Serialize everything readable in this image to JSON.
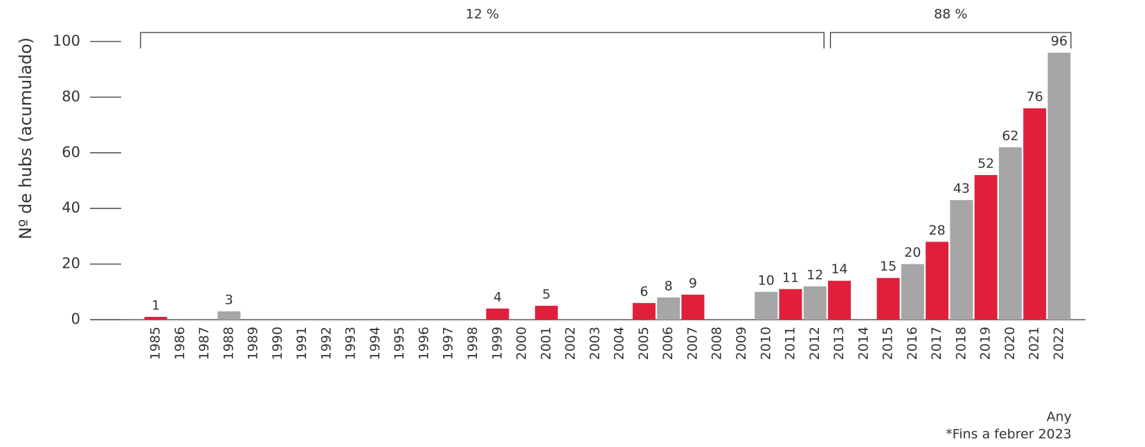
{
  "chart_data": {
    "type": "bar",
    "y_label": "Nº de hubs (acumulado)",
    "x_label": "Any",
    "note": "*Fins a febrer 2023",
    "categories": [
      "1985",
      "1986",
      "1987",
      "1988",
      "1989",
      "1990",
      "1991",
      "1992",
      "1993",
      "1994",
      "1995",
      "1996",
      "1997",
      "1998",
      "1999",
      "2000",
      "2001",
      "2002",
      "2003",
      "2004",
      "2005",
      "2006",
      "2007",
      "2008",
      "2009",
      "2010",
      "2011",
      "2012",
      "2013",
      "2014",
      "2015",
      "2016",
      "2017",
      "2018",
      "2019",
      "2020",
      "2021",
      "2022"
    ],
    "values": [
      1,
      null,
      null,
      3,
      null,
      null,
      null,
      null,
      null,
      null,
      null,
      null,
      null,
      null,
      4,
      null,
      5,
      null,
      null,
      null,
      6,
      8,
      9,
      null,
      null,
      10,
      11,
      12,
      14,
      null,
      15,
      20,
      28,
      43,
      52,
      62,
      76,
      96
    ],
    "colors": [
      "#e0203a",
      null,
      null,
      "#a6a6a6",
      null,
      null,
      null,
      null,
      null,
      null,
      null,
      null,
      null,
      null,
      "#e0203a",
      null,
      "#e0203a",
      null,
      null,
      null,
      "#e0203a",
      "#a6a6a6",
      "#e0203a",
      null,
      null,
      "#a6a6a6",
      "#e0203a",
      "#a6a6a6",
      "#e0203a",
      null,
      "#e0203a",
      "#a6a6a6",
      "#e0203a",
      "#a6a6a6",
      "#e0203a",
      "#a6a6a6",
      "#e0203a",
      "#a6a6a6"
    ],
    "ylim": [
      0,
      100
    ],
    "yticks": [
      0,
      20,
      40,
      60,
      80,
      100
    ],
    "annotations": [
      {
        "text": "12 %",
        "from": "1985",
        "to": "2012"
      },
      {
        "text": "88 %",
        "from": "2013",
        "to": "2022"
      }
    ]
  }
}
